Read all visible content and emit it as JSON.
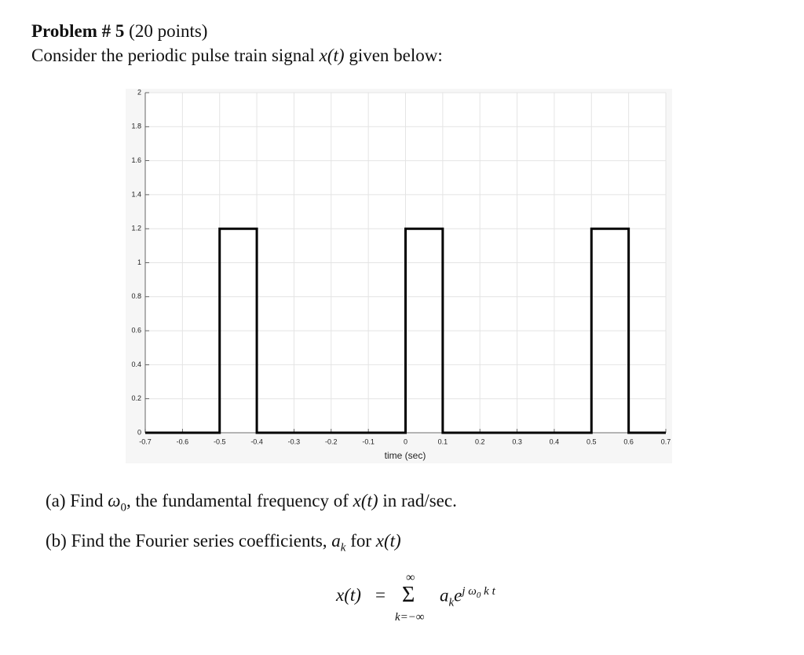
{
  "header": {
    "title": "Problem # 5",
    "points": "(20 points)"
  },
  "intro": {
    "text1": "Consider the periodic pulse train signal ",
    "math": "x(t)",
    "text2": " given below:"
  },
  "chart_data": {
    "type": "line",
    "x": [
      -0.7,
      -0.5,
      -0.5,
      -0.4,
      -0.4,
      0,
      0,
      0.1,
      0.1,
      0.5,
      0.5,
      0.6,
      0.6,
      0.7
    ],
    "values": [
      0,
      0,
      1.2,
      1.2,
      0,
      0,
      1.2,
      1.2,
      0,
      0,
      1.2,
      1.2,
      0,
      0
    ],
    "color": "#000000",
    "xlabel": "time (sec)",
    "xlim": [
      -0.7,
      0.7
    ],
    "xticks": [
      -0.7,
      -0.6,
      -0.5,
      -0.4,
      -0.3,
      -0.2,
      -0.1,
      0,
      0.1,
      0.2,
      0.3,
      0.4,
      0.5,
      0.6,
      0.7
    ],
    "ylim": [
      0,
      2
    ],
    "yticks": [
      0,
      0.2,
      0.4,
      0.6,
      0.8,
      1,
      1.2,
      1.4,
      1.6,
      1.8,
      2
    ],
    "grid": true
  },
  "question_a": {
    "label": "(a)",
    "text1": " Find ",
    "symbol": "ω",
    "subscript": "0",
    "text2": ", the fundamental frequency of ",
    "math": "x(t)",
    "text3": " in rad/sec."
  },
  "question_b": {
    "label": "(b)",
    "text1": " Find the Fourier series coefficients, ",
    "symbol": "a",
    "subscript": "k",
    "text2": " for ",
    "math": "x(t)"
  },
  "equation": {
    "lhs": "x(t)",
    "equals": "=",
    "sum": "Σ",
    "upper": "∞",
    "lower": "k=−∞",
    "coefficient": "a",
    "coefficient_subscript": "k",
    "base": "e",
    "exponent1": "j ω",
    "exponent_subscript": "0",
    "exponent2": " k t"
  }
}
